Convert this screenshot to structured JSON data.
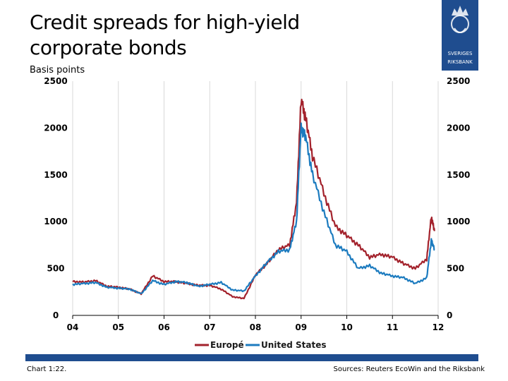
{
  "title": "Credit spreads for high-yield corporate bonds",
  "units": "Basis points",
  "logo": {
    "line1": "SVERIGES",
    "line2": "RIKSBANK"
  },
  "footer": {
    "left": "Chart 1:22.",
    "right": "Sources: Reuters EcoWin and the Riksbank"
  },
  "colors": {
    "europe": "#a3222c",
    "us": "#1c7bbf",
    "brand": "#1f4d8f"
  },
  "chart_data": {
    "type": "line",
    "title": "Credit spreads for high-yield corporate bonds",
    "ylabel": "Basis points",
    "xlabel": "",
    "ylim": [
      0,
      2500
    ],
    "xlim": [
      2004.0,
      2012.0
    ],
    "yticks": [
      0,
      500,
      1000,
      1500,
      2000,
      2500
    ],
    "xticks": [
      2004,
      2005,
      2006,
      2007,
      2008,
      2009,
      2010,
      2011,
      2012
    ],
    "xtick_labels": [
      "04",
      "05",
      "06",
      "07",
      "08",
      "09",
      "10",
      "11",
      "12"
    ],
    "grid": "vertical",
    "legend": "bottom-center",
    "x": [
      2004.0,
      2004.25,
      2004.5,
      2004.75,
      2005.0,
      2005.25,
      2005.5,
      2005.75,
      2006.0,
      2006.25,
      2006.5,
      2006.75,
      2007.0,
      2007.25,
      2007.5,
      2007.75,
      2008.0,
      2008.25,
      2008.5,
      2008.75,
      2008.9,
      2009.0,
      2009.1,
      2009.25,
      2009.5,
      2009.75,
      2010.0,
      2010.25,
      2010.5,
      2010.75,
      2011.0,
      2011.25,
      2011.5,
      2011.75,
      2011.85,
      2011.92
    ],
    "series": [
      {
        "name": "Europé",
        "color": "#a3222c",
        "values": [
          360,
          355,
          370,
          310,
          300,
          280,
          230,
          420,
          360,
          360,
          340,
          320,
          320,
          280,
          200,
          180,
          430,
          550,
          700,
          750,
          1200,
          2300,
          2100,
          1700,
          1300,
          950,
          850,
          750,
          620,
          650,
          620,
          550,
          500,
          600,
          1050,
          900
        ]
      },
      {
        "name": "United States",
        "color": "#1c7bbf",
        "values": [
          330,
          340,
          350,
          300,
          290,
          280,
          230,
          370,
          330,
          360,
          350,
          310,
          330,
          350,
          270,
          260,
          420,
          560,
          680,
          700,
          1000,
          2000,
          1900,
          1500,
          1100,
          750,
          680,
          500,
          530,
          450,
          420,
          400,
          340,
          400,
          800,
          700
        ]
      }
    ]
  }
}
